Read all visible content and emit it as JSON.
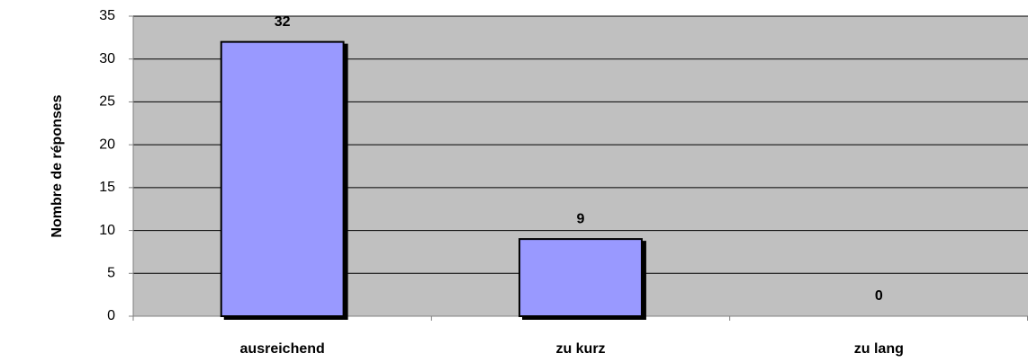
{
  "chart_data": {
    "type": "bar",
    "y_label": "Nombre de réponses",
    "categories": [
      "ausreichend",
      "zu kurz",
      "zu lang"
    ],
    "values": [
      32,
      9,
      0
    ],
    "color": "#9999ff",
    "ylim": [
      0,
      35
    ],
    "yticks": [
      0,
      5,
      10,
      15,
      20,
      25,
      30,
      35
    ],
    "grid": true
  }
}
